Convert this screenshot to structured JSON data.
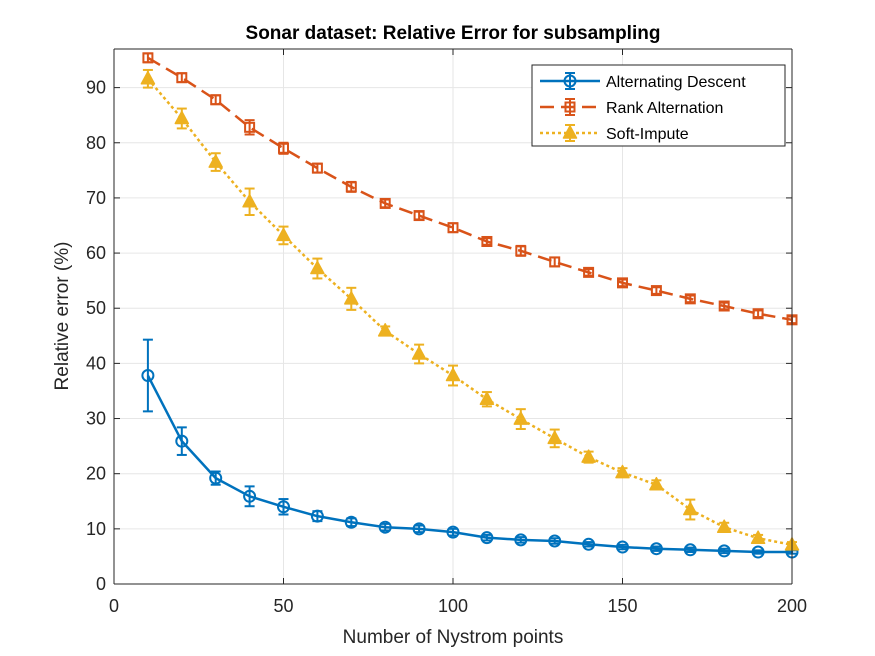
{
  "chart_data": {
    "type": "line",
    "title": "Sonar dataset: Relative Error for subsampling",
    "xlabel": "Number of Nystrom points",
    "ylabel": "Relative error (%)",
    "xlim": [
      0,
      200
    ],
    "ylim": [
      0,
      97
    ],
    "xticks": [
      0,
      50,
      100,
      150,
      200
    ],
    "yticks": [
      0,
      10,
      20,
      30,
      40,
      50,
      60,
      70,
      80,
      90
    ],
    "grid": true,
    "legend_position": "top-right",
    "x": [
      10,
      20,
      30,
      40,
      50,
      60,
      70,
      80,
      90,
      100,
      110,
      120,
      130,
      140,
      150,
      160,
      170,
      180,
      190,
      200
    ],
    "series": [
      {
        "name": "Alternating Descent",
        "color": "#0072BD",
        "line_style": "solid",
        "marker": "circle",
        "values": [
          37.8,
          25.9,
          19.2,
          15.9,
          14.0,
          12.3,
          11.2,
          10.3,
          10.0,
          9.4,
          8.4,
          8.0,
          7.8,
          7.2,
          6.7,
          6.4,
          6.2,
          6.0,
          5.8,
          5.8
        ],
        "errors": [
          6.5,
          2.5,
          1.2,
          1.8,
          1.4,
          0.9,
          0.7,
          0.6,
          0.6,
          0.6,
          0.5,
          0.5,
          0.5,
          0.4,
          0.4,
          0.4,
          0.4,
          0.4,
          0.3,
          0.3
        ]
      },
      {
        "name": "Rank Alternation",
        "color": "#D95319",
        "line_style": "dashed",
        "marker": "square",
        "values": [
          95.4,
          91.8,
          87.8,
          82.8,
          79.0,
          75.4,
          72.0,
          69.0,
          66.8,
          64.6,
          62.1,
          60.4,
          58.4,
          56.5,
          54.6,
          53.2,
          51.7,
          50.4,
          49.0,
          47.9
        ],
        "errors": [
          0.8,
          0.8,
          0.8,
          1.3,
          1.0,
          0.8,
          0.9,
          0.7,
          0.7,
          0.8,
          0.6,
          0.9,
          0.8,
          0.6,
          0.6,
          0.6,
          0.6,
          0.6,
          0.6,
          0.6
        ]
      },
      {
        "name": "Soft-Impute",
        "color": "#EDB120",
        "line_style": "dotted",
        "marker": "triangle",
        "values": [
          91.6,
          84.4,
          76.5,
          69.3,
          63.2,
          57.2,
          51.7,
          45.9,
          41.7,
          37.8,
          33.5,
          29.9,
          26.4,
          23.0,
          20.2,
          18.0,
          13.5,
          10.3,
          8.3,
          7.1
        ],
        "errors": [
          1.6,
          1.8,
          1.6,
          2.4,
          1.6,
          1.8,
          2.0,
          0.8,
          1.7,
          1.8,
          1.3,
          1.8,
          1.6,
          1.0,
          0.8,
          0.8,
          1.8,
          0.8,
          0.6,
          0.5
        ]
      }
    ]
  }
}
